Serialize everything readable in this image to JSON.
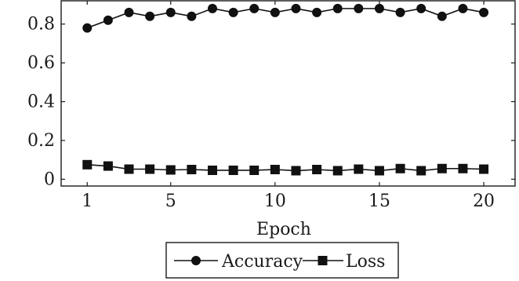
{
  "chart_data": {
    "type": "line",
    "xlabel": "Epoch",
    "ylabel": "",
    "xlim": [
      -0.25,
      21.5
    ],
    "ylim": [
      -0.035,
      0.92
    ],
    "x_ticks": [
      1,
      5,
      10,
      15,
      20
    ],
    "y_ticks": [
      0,
      0.2,
      0.4,
      0.6,
      0.8
    ],
    "y_tick_labels": [
      "0",
      "0.2",
      "0.4",
      "0.6",
      "0.8"
    ],
    "grid": false,
    "legend_position": "bottom-center",
    "x": [
      1,
      2,
      3,
      4,
      5,
      6,
      7,
      8,
      9,
      10,
      11,
      12,
      13,
      14,
      15,
      16,
      17,
      18,
      19,
      20
    ],
    "series": [
      {
        "name": "Accuracy",
        "marker": "circle",
        "values": [
          0.78,
          0.82,
          0.86,
          0.84,
          0.86,
          0.84,
          0.88,
          0.86,
          0.88,
          0.86,
          0.88,
          0.86,
          0.88,
          0.88,
          0.88,
          0.86,
          0.88,
          0.84,
          0.88,
          0.86
        ]
      },
      {
        "name": "Loss",
        "marker": "square",
        "values": [
          0.075,
          0.068,
          0.052,
          0.052,
          0.048,
          0.05,
          0.046,
          0.046,
          0.046,
          0.05,
          0.044,
          0.05,
          0.044,
          0.052,
          0.044,
          0.055,
          0.044,
          0.055,
          0.055,
          0.052
        ]
      }
    ]
  }
}
